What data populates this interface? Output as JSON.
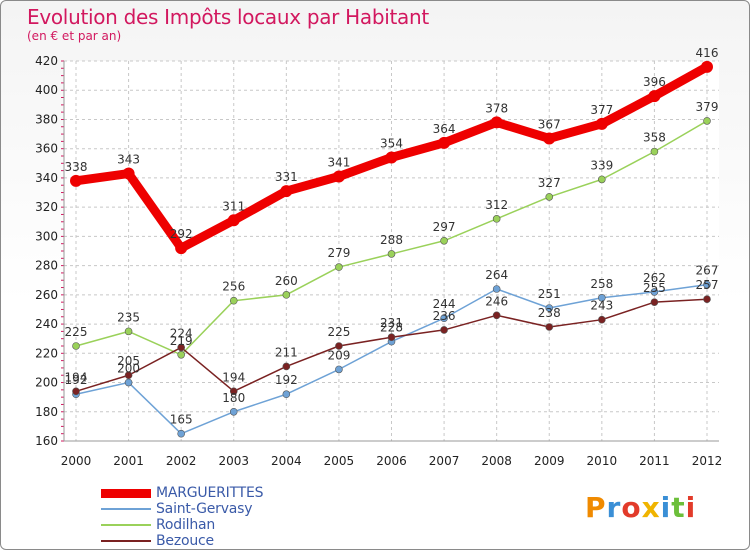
{
  "title": "Evolution des Impôts locaux par Habitant",
  "subtitle": "(en € et par an)",
  "logo": "Proxiti",
  "chart_data": {
    "type": "line",
    "x": [
      "2000",
      "2001",
      "2002",
      "2003",
      "2004",
      "2005",
      "2006",
      "2007",
      "2008",
      "2009",
      "2010",
      "2011",
      "2012"
    ],
    "ylim": [
      160,
      420
    ],
    "yticks": [
      160,
      180,
      200,
      220,
      240,
      260,
      280,
      300,
      320,
      340,
      360,
      380,
      400,
      420
    ],
    "grid": true,
    "legend_placement": "bottom-left",
    "series": [
      {
        "name": "MARGUERITTES",
        "color": "#ee0000",
        "values": [
          338,
          343,
          292,
          311,
          331,
          341,
          354,
          364,
          378,
          367,
          377,
          396,
          416
        ],
        "labels": [
          "338",
          "343",
          "292",
          "311",
          "331",
          "341",
          "354",
          "364",
          "378",
          "367",
          "377",
          "396",
          "416"
        ]
      },
      {
        "name": "Saint-Gervasy",
        "color": "#6ea2d6",
        "values": [
          192,
          200,
          165,
          180,
          192,
          209,
          228,
          244,
          264,
          251,
          258,
          262,
          267
        ],
        "labels": [
          "192",
          "200",
          "165",
          "180",
          "192",
          "209",
          "228",
          "244",
          "264",
          "251",
          "258",
          "262",
          "267"
        ]
      },
      {
        "name": "Rodilhan",
        "color": "#9ad15a",
        "values": [
          225,
          235,
          219,
          256,
          260,
          279,
          288,
          297,
          312,
          327,
          339,
          358,
          379
        ],
        "labels": [
          "225",
          "235",
          "219",
          "256",
          "260",
          "279",
          "288",
          "297",
          "312",
          "327",
          "339",
          "358",
          "379"
        ]
      },
      {
        "name": "Bezouce",
        "color": "#7a2222",
        "values": [
          194,
          205,
          224,
          194,
          211,
          225,
          231,
          236,
          246,
          238,
          243,
          255,
          257
        ],
        "labels": [
          "194",
          "205",
          "224",
          "194",
          "211",
          "225",
          "231",
          "236",
          "246",
          "238",
          "243",
          "255",
          "257"
        ]
      }
    ]
  }
}
